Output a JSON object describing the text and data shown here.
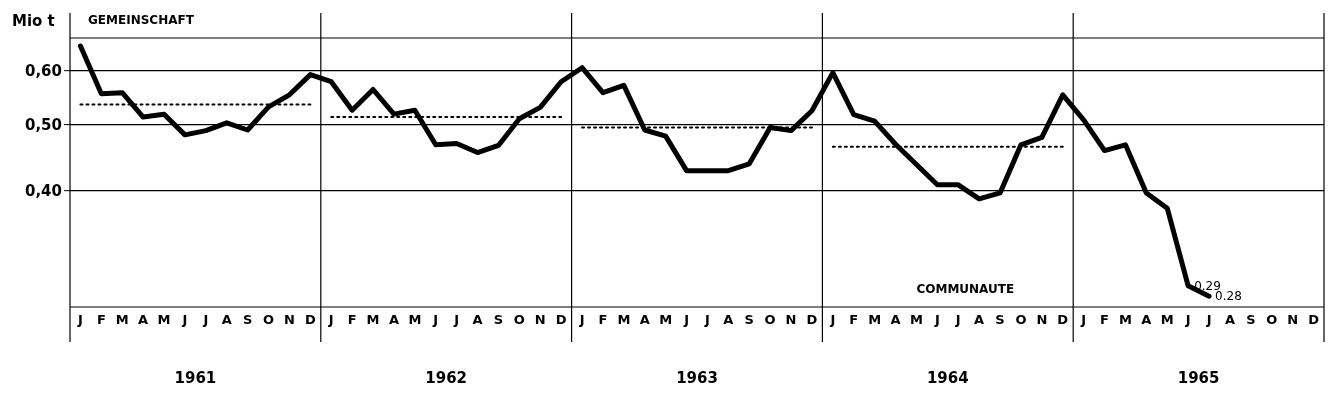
{
  "chart_data": {
    "type": "line",
    "title": "GEMEINSCHAFT",
    "subtitle": "COMMUNAUTE",
    "ylabel": "Mio t",
    "categories": [
      "J",
      "F",
      "M",
      "A",
      "M",
      "J",
      "J",
      "A",
      "S",
      "O",
      "N",
      "D",
      "J",
      "F",
      "M",
      "A",
      "M",
      "J",
      "J",
      "A",
      "S",
      "O",
      "N",
      "D",
      "J",
      "F",
      "M",
      "A",
      "M",
      "J",
      "J",
      "A",
      "S",
      "O",
      "N",
      "D",
      "J",
      "F",
      "M",
      "A",
      "M",
      "J",
      "J",
      "A",
      "S",
      "O",
      "N",
      "D",
      "J",
      "F",
      "M",
      "A",
      "M",
      "J",
      "J",
      "A",
      "S",
      "O",
      "N",
      "D"
    ],
    "annotations": [
      "1961",
      "1962",
      "1963",
      "1964",
      "1965"
    ],
    "series": [
      {
        "color": "#000000",
        "line_style": "solid",
        "values": [
          0.652,
          0.555,
          0.557,
          0.513,
          0.518,
          0.483,
          0.49,
          0.503,
          0.491,
          0.531,
          0.553,
          0.592,
          0.578,
          0.525,
          0.563,
          0.518,
          0.525,
          0.467,
          0.469,
          0.455,
          0.466,
          0.51,
          0.53,
          0.578,
          0.606,
          0.557,
          0.571,
          0.491,
          0.481,
          0.428,
          0.428,
          0.428,
          0.438,
          0.495,
          0.49,
          0.524,
          0.596,
          0.517,
          0.506,
          0.468,
          0.437,
          0.408,
          0.408,
          0.389,
          0.397,
          0.467,
          0.479,
          0.553,
          0.508,
          0.458,
          0.467,
          0.397,
          0.377,
          0.29,
          0.28,
          null,
          null,
          null,
          null,
          null
        ],
        "value_labels": [
          null,
          null,
          null,
          null,
          null,
          null,
          null,
          null,
          null,
          null,
          null,
          null,
          null,
          null,
          null,
          null,
          null,
          null,
          null,
          null,
          null,
          null,
          null,
          null,
          null,
          null,
          null,
          null,
          null,
          null,
          null,
          null,
          null,
          null,
          null,
          null,
          null,
          null,
          null,
          null,
          null,
          null,
          null,
          null,
          null,
          null,
          null,
          null,
          null,
          null,
          null,
          null,
          null,
          "0.29",
          "0.28",
          null,
          null,
          null,
          null,
          null
        ]
      },
      {
        "color": "#000000",
        "line_style": "dotted",
        "values": [
          0.535,
          0.535,
          0.535,
          0.535,
          0.535,
          0.535,
          0.535,
          0.535,
          0.535,
          0.535,
          0.535,
          0.535,
          null,
          null,
          null,
          null,
          null,
          null,
          null,
          null,
          null,
          null,
          null,
          null,
          null,
          null,
          null,
          null,
          null,
          null,
          null,
          null,
          null,
          null,
          null,
          null,
          null,
          null,
          null,
          null,
          null,
          null,
          null,
          null,
          null,
          null,
          null,
          null,
          null,
          null,
          null,
          null,
          null,
          null,
          null,
          null,
          null,
          null,
          null,
          null
        ]
      },
      {
        "color": "#000000",
        "line_style": "dotted",
        "values": [
          null,
          null,
          null,
          null,
          null,
          null,
          null,
          null,
          null,
          null,
          null,
          null,
          0.513,
          0.513,
          0.513,
          0.513,
          0.513,
          0.513,
          0.513,
          0.513,
          0.513,
          0.513,
          0.513,
          0.513,
          null,
          null,
          null,
          null,
          null,
          null,
          null,
          null,
          null,
          null,
          null,
          null,
          null,
          null,
          null,
          null,
          null,
          null,
          null,
          null,
          null,
          null,
          null,
          null,
          null,
          null,
          null,
          null,
          null,
          null,
          null,
          null,
          null,
          null,
          null,
          null
        ]
      },
      {
        "color": "#000000",
        "line_style": "dotted",
        "values": [
          null,
          null,
          null,
          null,
          null,
          null,
          null,
          null,
          null,
          null,
          null,
          null,
          null,
          null,
          null,
          null,
          null,
          null,
          null,
          null,
          null,
          null,
          null,
          null,
          0.495,
          0.495,
          0.495,
          0.495,
          0.495,
          0.495,
          0.495,
          0.495,
          0.495,
          0.495,
          0.495,
          0.495,
          null,
          null,
          null,
          null,
          null,
          null,
          null,
          null,
          null,
          null,
          null,
          null,
          null,
          null,
          null,
          null,
          null,
          null,
          null,
          null,
          null,
          null,
          null,
          null
        ]
      },
      {
        "color": "#000000",
        "line_style": "dotted",
        "values": [
          null,
          null,
          null,
          null,
          null,
          null,
          null,
          null,
          null,
          null,
          null,
          null,
          null,
          null,
          null,
          null,
          null,
          null,
          null,
          null,
          null,
          null,
          null,
          null,
          null,
          null,
          null,
          null,
          null,
          null,
          null,
          null,
          null,
          null,
          null,
          null,
          0.464,
          0.464,
          0.464,
          0.464,
          0.464,
          0.464,
          0.464,
          0.464,
          0.464,
          0.464,
          0.464,
          0.464,
          null,
          null,
          null,
          null,
          null,
          null,
          null,
          null,
          null,
          null,
          null,
          null
        ]
      }
    ],
    "log": "y",
    "ylim": [
      0.27,
      0.67
    ],
    "yticks": [
      {
        "value": 0.4,
        "label": "0,40"
      },
      {
        "value": 0.5,
        "label": "0,50"
      },
      {
        "value": 0.6,
        "label": "0,60"
      }
    ],
    "grid": "y",
    "legend": false,
    "marker": "none"
  }
}
